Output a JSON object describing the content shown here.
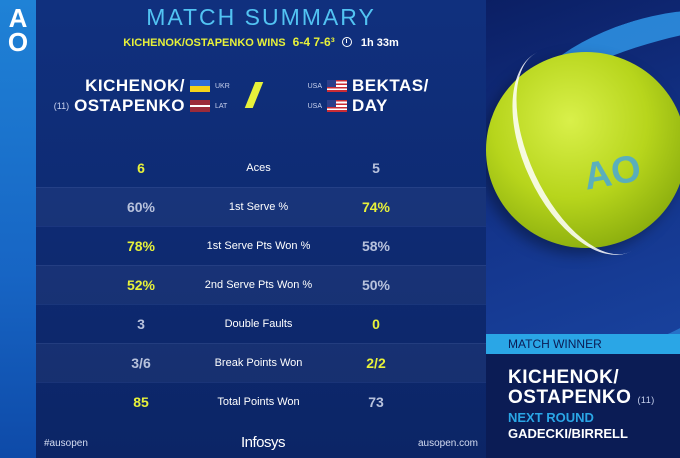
{
  "header": {
    "title": "MATCH SUMMARY",
    "winners_text": "KICHENOK/OSTAPENKO WINS",
    "score": "6-4  7-6³",
    "duration": "1h 33m"
  },
  "team_left": {
    "seed": "(11)",
    "players": [
      {
        "name": "KICHENOK/",
        "country": "UKR"
      },
      {
        "name": "OSTAPENKO",
        "country": "LAT"
      }
    ]
  },
  "team_right": {
    "players": [
      {
        "name": "BEKTAS/",
        "country": "USA"
      },
      {
        "name": "DAY",
        "country": "USA"
      }
    ]
  },
  "stats": [
    {
      "label": "Aces",
      "left": "6",
      "right": "5",
      "leader": "left"
    },
    {
      "label": "1st Serve %",
      "left": "60%",
      "right": "74%",
      "leader": "right"
    },
    {
      "label": "1st Serve Pts Won %",
      "left": "78%",
      "right": "58%",
      "leader": "left"
    },
    {
      "label": "2nd Serve Pts Won %",
      "left": "52%",
      "right": "50%",
      "leader": "left"
    },
    {
      "label": "Double Faults",
      "left": "3",
      "right": "0",
      "leader": "right"
    },
    {
      "label": "Break Points Won",
      "left": "3/6",
      "right": "2/2",
      "leader": "right"
    },
    {
      "label": "Total Points Won",
      "left": "85",
      "right": "73",
      "leader": "left"
    }
  ],
  "footer": {
    "hashtag": "#ausopen",
    "sponsor": "Infosys",
    "website": "ausopen.com"
  },
  "winner_panel": {
    "tag": "MATCH WINNER",
    "name_line1": "KICHENOK/",
    "name_line2": "OSTAPENKO",
    "seed": "(11)",
    "next_label": "NEXT ROUND",
    "next_team": "GADECKI/BIRRELL"
  },
  "logo": {
    "text": "AO"
  },
  "colors": {
    "accent_yellow": "#e7f13a",
    "accent_cyan": "#52c3f2",
    "bg_navy": "#0c2566"
  }
}
